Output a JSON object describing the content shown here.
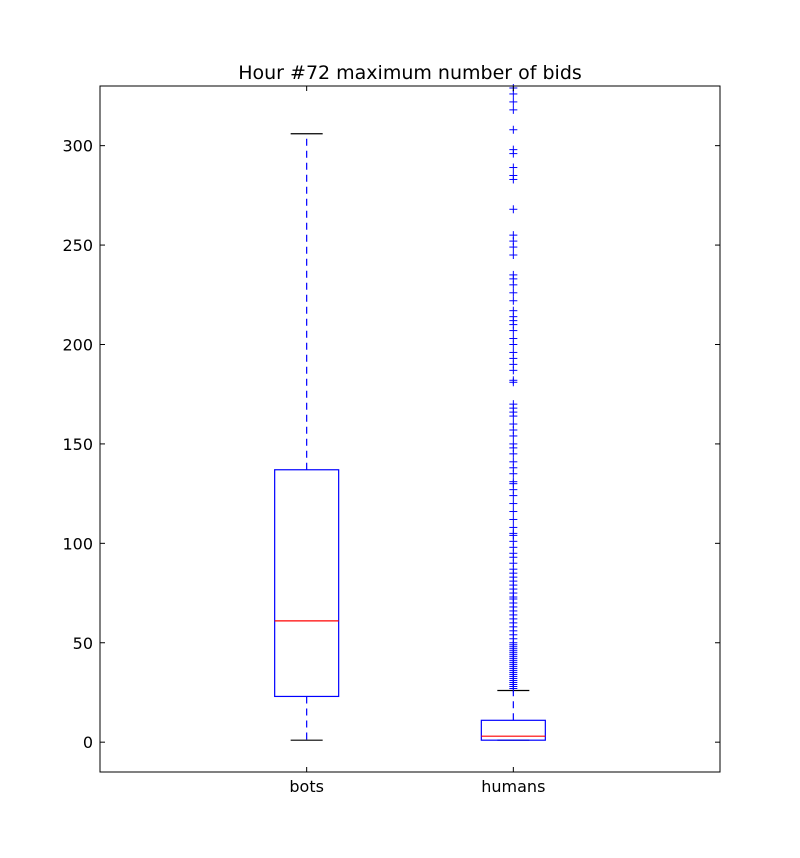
{
  "chart_data": {
    "type": "box",
    "title": "Hour #72 maximum number of bids",
    "xlabel": "",
    "ylabel": "",
    "categories": [
      "bots",
      "humans"
    ],
    "ylim": [
      -15,
      330
    ],
    "yticks": [
      0,
      50,
      100,
      150,
      200,
      250,
      300
    ],
    "grid": false,
    "legend": "none",
    "colors": {
      "box": "#0000ff",
      "whisker": "#0000ff",
      "median": "#ff0000",
      "cap": "#000000",
      "flier": "#0000ff"
    },
    "boxes": [
      {
        "category": "bots",
        "whisker_low": 1,
        "q1": 23,
        "median": 61,
        "q3": 137,
        "whisker_high": 306,
        "fliers": []
      },
      {
        "category": "humans",
        "whisker_low": 1,
        "q1": 1,
        "median": 3,
        "q3": 11,
        "whisker_high": 26,
        "fliers": [
          27,
          28,
          29,
          30,
          31,
          32,
          33,
          34,
          35,
          36,
          37,
          38,
          39,
          40,
          41,
          42,
          43,
          44,
          45,
          46,
          47,
          48,
          49,
          50,
          52,
          54,
          56,
          58,
          60,
          62,
          64,
          66,
          68,
          70,
          72,
          73,
          75,
          77,
          79,
          81,
          83,
          85,
          87,
          90,
          93,
          95,
          98,
          101,
          104,
          105,
          108,
          112,
          116,
          120,
          124,
          127,
          130,
          131,
          135,
          138,
          141,
          145,
          148,
          150,
          154,
          157,
          160,
          164,
          166,
          168,
          170,
          181,
          182,
          187,
          190,
          193,
          196,
          200,
          203,
          207,
          210,
          212,
          214,
          217,
          222,
          226,
          230,
          233,
          235,
          245,
          249,
          252,
          255,
          268,
          283,
          285,
          289,
          296,
          298,
          308,
          318,
          322,
          326,
          329
        ]
      }
    ]
  }
}
